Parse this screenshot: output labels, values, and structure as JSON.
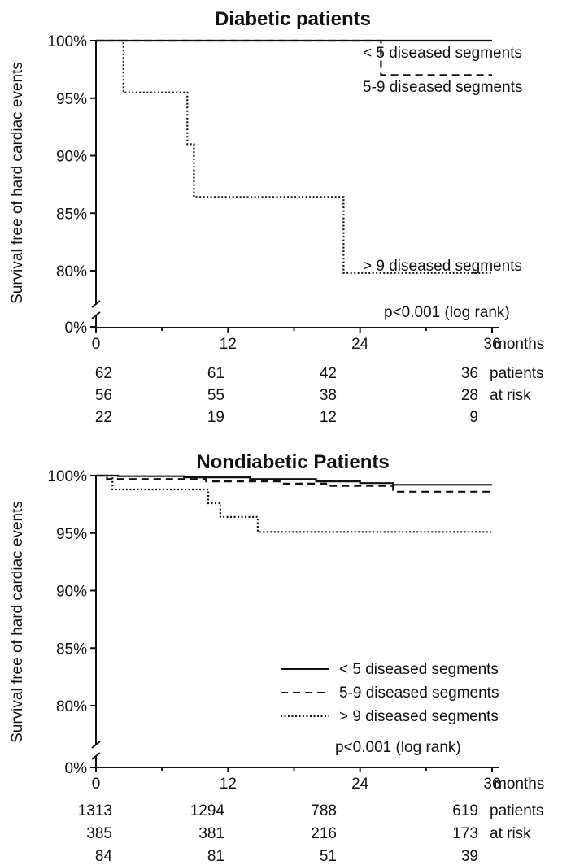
{
  "chart_data": [
    {
      "type": "line",
      "title": "Diabetic patients",
      "ylabel": "Survival free of hard cardiac events",
      "xlim": [
        0,
        36
      ],
      "ylim": [
        78,
        100
      ],
      "x_ticks": [
        0,
        12,
        24,
        36
      ],
      "x_tick_labels": [
        "0",
        "12",
        "24",
        "36"
      ],
      "x_unit_label": "months",
      "y_tick_labels": [
        {
          "value": 100,
          "label": "100%"
        },
        {
          "value": 95,
          "label": "95%"
        },
        {
          "value": 90,
          "label": "90%"
        },
        {
          "value": 85,
          "label": "85%"
        },
        {
          "value": 80,
          "label": "80%"
        },
        {
          "value": "break",
          "label": "0%"
        }
      ],
      "annotation": "p<0.001 (log rank)",
      "series": [
        {
          "name": "< 5 diseased segments",
          "style": "solid",
          "x": [
            0,
            36
          ],
          "y": [
            100,
            100
          ]
        },
        {
          "name": "5-9 diseased segments",
          "style": "dashed",
          "x": [
            0,
            25.9,
            25.9,
            36
          ],
          "y": [
            100,
            100,
            97,
            97
          ]
        },
        {
          "name": "> 9 diseased segments",
          "style": "dotted",
          "x": [
            0,
            2.5,
            2.5,
            8.3,
            8.3,
            8.9,
            8.9,
            22.5,
            22.5,
            36
          ],
          "y": [
            100,
            100,
            95.5,
            95.5,
            91,
            91,
            86.4,
            86.4,
            79.8,
            79.8
          ]
        }
      ],
      "at_risk": {
        "label_lines": [
          "patients",
          "at risk"
        ],
        "rows": [
          [
            "62",
            "61",
            "42",
            "36"
          ],
          [
            "56",
            "55",
            "38",
            "28"
          ],
          [
            "22",
            "19",
            "12",
            "9"
          ]
        ]
      }
    },
    {
      "type": "line",
      "title": "Nondiabetic Patients",
      "ylabel": "Survival free of hard cardiac events",
      "xlim": [
        0,
        36
      ],
      "ylim": [
        78,
        100
      ],
      "x_ticks": [
        0,
        12,
        24,
        36
      ],
      "x_tick_labels": [
        "0",
        "12",
        "24",
        "36"
      ],
      "x_unit_label": "months",
      "y_tick_labels": [
        {
          "value": 100,
          "label": "100%"
        },
        {
          "value": 95,
          "label": "95%"
        },
        {
          "value": 90,
          "label": "90%"
        },
        {
          "value": 85,
          "label": "85%"
        },
        {
          "value": 80,
          "label": "80%"
        },
        {
          "value": "break",
          "label": "0%"
        }
      ],
      "annotation": "p<0.001 (log rank)",
      "legend_position": "bottom-right",
      "series": [
        {
          "name": "< 5 diseased segments",
          "style": "solid",
          "x": [
            0,
            2,
            2,
            8,
            8,
            14,
            14,
            20,
            20,
            24,
            24,
            27,
            27,
            36
          ],
          "y": [
            100,
            100,
            99.95,
            99.95,
            99.85,
            99.85,
            99.7,
            99.7,
            99.5,
            99.5,
            99.35,
            99.35,
            99.2,
            99.2
          ]
        },
        {
          "name": "5-9 diseased segments",
          "style": "dashed",
          "x": [
            0,
            1,
            1,
            10,
            10,
            17,
            17,
            21,
            21,
            27,
            27,
            36
          ],
          "y": [
            100,
            100,
            99.7,
            99.7,
            99.5,
            99.5,
            99.3,
            99.3,
            99.1,
            99.1,
            98.6,
            98.6
          ]
        },
        {
          "name": "> 9 diseased segments",
          "style": "dotted",
          "x": [
            0,
            1.5,
            1.5,
            10.2,
            10.2,
            11.3,
            11.3,
            14.7,
            14.7,
            36
          ],
          "y": [
            100,
            100,
            98.8,
            98.8,
            97.6,
            97.6,
            96.4,
            96.4,
            95.1,
            95.1
          ]
        }
      ],
      "at_risk": {
        "label_lines": [
          "patients",
          "at risk"
        ],
        "rows": [
          [
            "1313",
            "1294",
            "788",
            "619"
          ],
          [
            "385",
            "381",
            "216",
            "173"
          ],
          [
            "84",
            "81",
            "51",
            "39"
          ]
        ]
      }
    }
  ]
}
